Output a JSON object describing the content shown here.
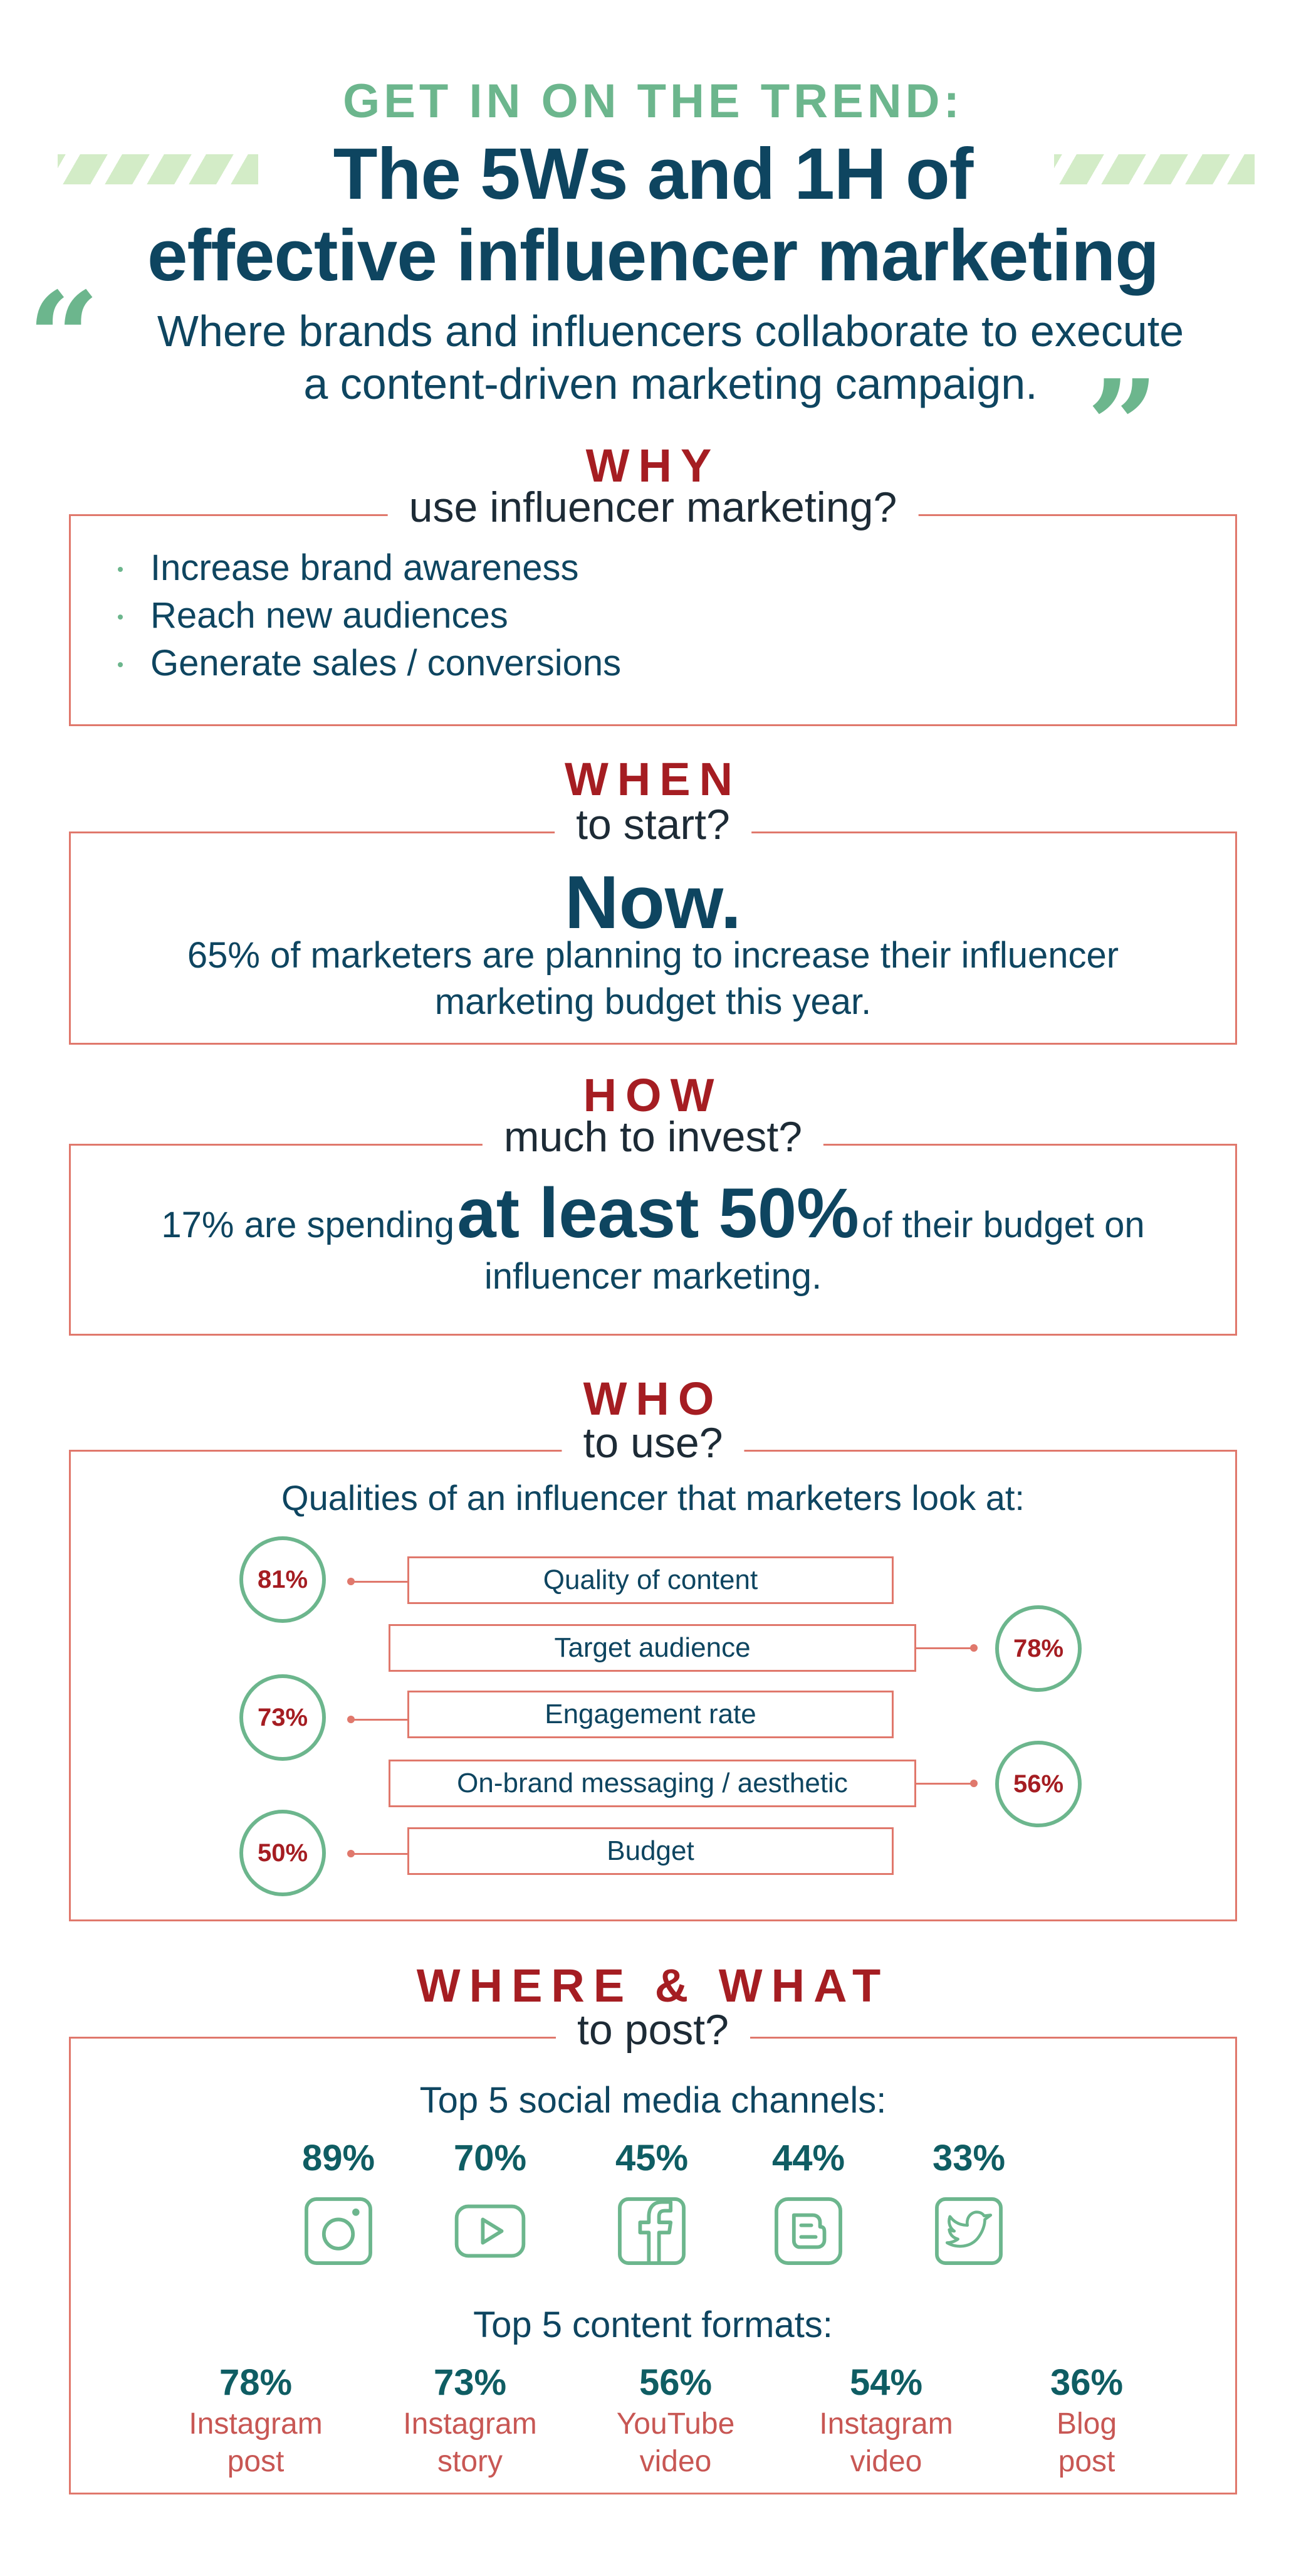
{
  "header": {
    "kicker": "GET IN ON THE TREND:",
    "title_line1": "The 5Ws and 1H of",
    "title_line2": "effective influencer marketing",
    "quote_line1": "Where brands and influencers collaborate to execute",
    "quote_line2": "a content-driven marketing campaign.",
    "open_quote_mark": "“",
    "close_quote_mark": "”"
  },
  "why": {
    "heading": "WHY",
    "subheading": "use influencer marketing?",
    "items": [
      "Increase brand awareness",
      "Reach new audiences",
      "Generate sales / conversions"
    ]
  },
  "when": {
    "heading": "WHEN",
    "subheading": "to start?",
    "big": "Now.",
    "line1": "65% of marketers are planning to increase their influencer",
    "line2": "marketing budget this year."
  },
  "how": {
    "heading": "HOW",
    "subheading": "much to invest?",
    "pre": "17% are spending",
    "big": "at least 50%",
    "post": "of their budget on",
    "line2": "influencer marketing."
  },
  "who": {
    "heading": "WHO",
    "subheading": "to use?",
    "intro": "Qualities of an influencer that marketers look at:",
    "qualities": [
      {
        "label": "Quality of content",
        "pct": "81%",
        "value": 81,
        "side": "left"
      },
      {
        "label": "Target audience",
        "pct": "78%",
        "value": 78,
        "side": "right"
      },
      {
        "label": "Engagement rate",
        "pct": "73%",
        "value": 73,
        "side": "left"
      },
      {
        "label": "On-brand messaging / aesthetic",
        "pct": "56%",
        "value": 56,
        "side": "right"
      },
      {
        "label": "Budget",
        "pct": "50%",
        "value": 50,
        "side": "left"
      }
    ]
  },
  "where": {
    "heading": "WHERE & WHAT",
    "subheading": "to post?",
    "channels_title": "Top 5 social media channels:",
    "channels": [
      {
        "pct": "89%",
        "icon": "instagram-icon"
      },
      {
        "pct": "70%",
        "icon": "youtube-icon"
      },
      {
        "pct": "45%",
        "icon": "facebook-icon"
      },
      {
        "pct": "44%",
        "icon": "blogger-icon"
      },
      {
        "pct": "33%",
        "icon": "twitter-icon"
      }
    ],
    "formats_title": "Top 5 content formats:",
    "formats": [
      {
        "pct": "78%",
        "line1": "Instagram",
        "line2": "post"
      },
      {
        "pct": "73%",
        "line1": "Instagram",
        "line2": "story"
      },
      {
        "pct": "56%",
        "line1": "YouTube",
        "line2": "video"
      },
      {
        "pct": "54%",
        "line1": "Instagram",
        "line2": "video"
      },
      {
        "pct": "36%",
        "line1": "Blog",
        "line2": "post"
      }
    ]
  },
  "colors": {
    "navy": "#0e4560",
    "red": "#a51d22",
    "green": "#6cb68d",
    "teal": "#0f5d63",
    "border": "#e0786c",
    "format_label": "#c85754"
  }
}
